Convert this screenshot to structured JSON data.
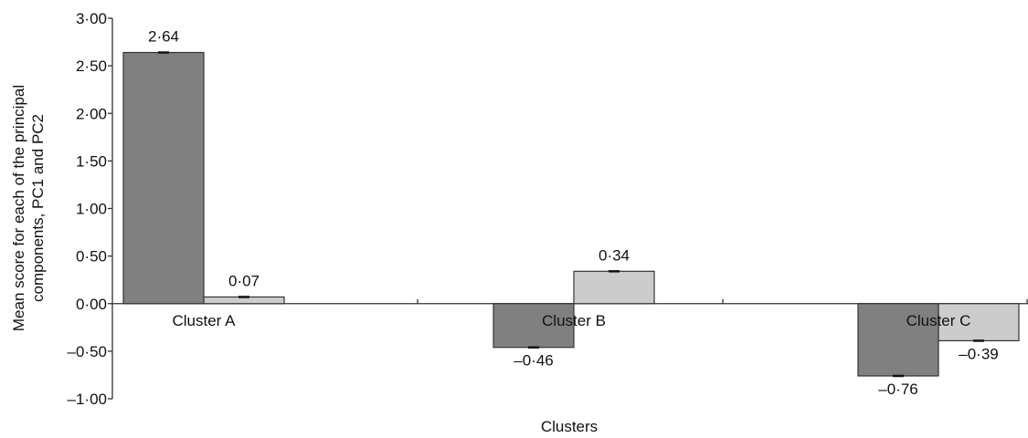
{
  "chart_data": {
    "type": "bar",
    "categories": [
      "Cluster A",
      "Cluster B",
      "Cluster C"
    ],
    "series": [
      {
        "values": [
          2.64,
          -0.46,
          -0.76
        ],
        "labels": [
          "2·64",
          "–0·46",
          "–0·76"
        ],
        "color": "#808080"
      },
      {
        "values": [
          0.07,
          0.34,
          -0.39
        ],
        "labels": [
          "0·07",
          "0·34",
          "–0·39"
        ],
        "color": "#cccccc"
      }
    ],
    "yticks": [
      3.0,
      2.5,
      2.0,
      1.5,
      1.0,
      0.5,
      0.0,
      -0.5,
      -1.0
    ],
    "ytick_labels": [
      "3·00",
      "2·50",
      "2·00",
      "1·50",
      "1·00",
      "0·50",
      "0·00",
      "–0·50",
      "–1·00"
    ],
    "ylim": [
      -1.0,
      3.0
    ],
    "xlabel": "Clusters",
    "ylabel_lines": [
      "Mean score for each of the principal",
      "components, PC1 and PC2"
    ],
    "error_bars": true,
    "grid": false
  }
}
